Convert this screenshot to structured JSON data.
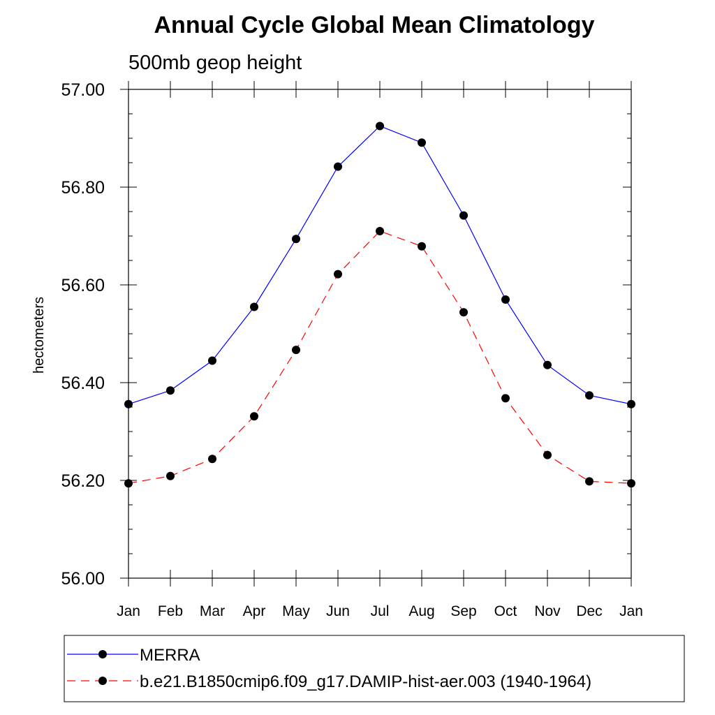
{
  "chart_data": {
    "type": "line",
    "title": "Annual Cycle Global Mean Climatology",
    "subtitle": "500mb geop height",
    "ylabel": "hectometers",
    "xlabel": "",
    "categories": [
      "Jan",
      "Feb",
      "Mar",
      "Apr",
      "May",
      "Jun",
      "Jul",
      "Aug",
      "Sep",
      "Oct",
      "Nov",
      "Dec",
      "Jan"
    ],
    "ylim": [
      56.0,
      57.0
    ],
    "yticks": [
      "56.00",
      "56.20",
      "56.40",
      "56.60",
      "56.80",
      "57.00"
    ],
    "grid": false,
    "legend_position": "bottom",
    "series": [
      {
        "name": "MERRA",
        "color": "#0000ff",
        "line_style": "solid",
        "marker": "filled-circle",
        "values": [
          56.356,
          56.384,
          56.445,
          56.555,
          56.694,
          56.842,
          56.925,
          56.891,
          56.742,
          56.57,
          56.436,
          56.374,
          56.356
        ]
      },
      {
        "name": "b.e21.B1850cmip6.f09_g17.DAMIP-hist-aer.003 (1940-1964)",
        "color": "#ff0000",
        "line_style": "dashed",
        "marker": "filled-circle",
        "values": [
          56.194,
          56.209,
          56.244,
          56.331,
          56.467,
          56.622,
          56.71,
          56.679,
          56.544,
          56.368,
          56.252,
          56.198,
          56.194
        ]
      }
    ]
  }
}
